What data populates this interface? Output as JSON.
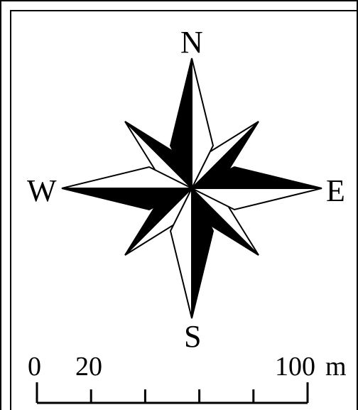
{
  "compass": {
    "north": "N",
    "south": "S",
    "east": "E",
    "west": "W"
  },
  "scale_bar": {
    "labels": [
      "0",
      "20",
      "100"
    ],
    "unit": "m",
    "divisions": 5
  },
  "colors": {
    "ink": "#000000",
    "paper": "#ffffff"
  }
}
